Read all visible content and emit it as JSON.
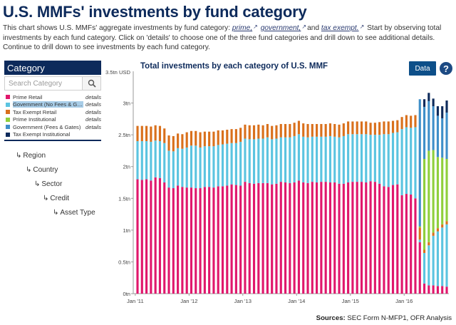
{
  "page": {
    "title": "U.S. MMFs' investments by fund category",
    "desc_part1": "This chart shows U.S. MMFs' aggregate investments by fund category: ",
    "link_prime": "prime,",
    "link_government": "government,",
    "desc_and": "and ",
    "link_tax_exempt": "tax exempt.",
    "desc_part2": " Start by observing total investments by each fund category. Click on 'details' to choose one of the three fund categories and drill down to see additional details. Continue to drill down to see investments by each fund category."
  },
  "sidebar": {
    "header": "Category",
    "search_placeholder": "Search Category",
    "details_label": "details",
    "categories": [
      {
        "label": "Prime Retail",
        "color": "#e0176c"
      },
      {
        "label": "Government (No Fees & Gates)",
        "color": "#5bc4e0"
      },
      {
        "label": "Tax Exempt Retail",
        "color": "#d9701c"
      },
      {
        "label": "Prime Institutional",
        "color": "#8fcf3c"
      },
      {
        "label": "Government (Fees & Gates)",
        "color": "#3f8fc9"
      },
      {
        "label": "Tax Exempt Institutional",
        "color": "#0d2a5b"
      }
    ],
    "drilldown": [
      "Region",
      "Country",
      "Sector",
      "Credit",
      "Asset Type"
    ]
  },
  "toolbar": {
    "data_label": "Data",
    "help_label": "?"
  },
  "sources": {
    "label": "Sources:",
    "text": "SEC Form N-MFP1, OFR Analysis"
  },
  "chart_data": {
    "type": "bar",
    "stacked": true,
    "title": "Total investments by each category of U.S. MMF",
    "yunit_label": "3.5tn USD",
    "ylim": [
      0,
      3.5
    ],
    "yticks": [
      "0tn",
      "0.5tn",
      "1tn",
      "1.5tn",
      "2tn",
      "2.5tn",
      "3tn"
    ],
    "ytick_values": [
      0,
      0.5,
      1,
      1.5,
      2,
      2.5,
      3
    ],
    "xticks": [
      "Jan '11",
      "Jan '12",
      "Jan '13",
      "Jan '14",
      "Jan '15",
      "Jan '16"
    ],
    "categories": [
      "2011-01",
      "2011-02",
      "2011-03",
      "2011-04",
      "2011-05",
      "2011-06",
      "2011-07",
      "2011-08",
      "2011-09",
      "2011-10",
      "2011-11",
      "2011-12",
      "2012-01",
      "2012-02",
      "2012-03",
      "2012-04",
      "2012-05",
      "2012-06",
      "2012-07",
      "2012-08",
      "2012-09",
      "2012-10",
      "2012-11",
      "2012-12",
      "2013-01",
      "2013-02",
      "2013-03",
      "2013-04",
      "2013-05",
      "2013-06",
      "2013-07",
      "2013-08",
      "2013-09",
      "2013-10",
      "2013-11",
      "2013-12",
      "2014-01",
      "2014-02",
      "2014-03",
      "2014-04",
      "2014-05",
      "2014-06",
      "2014-07",
      "2014-08",
      "2014-09",
      "2014-10",
      "2014-11",
      "2014-12",
      "2015-01",
      "2015-02",
      "2015-03",
      "2015-04",
      "2015-05",
      "2015-06",
      "2015-07",
      "2015-08",
      "2015-09",
      "2015-10",
      "2015-11",
      "2015-12",
      "2016-01",
      "2016-02",
      "2016-03",
      "2016-04",
      "2016-05",
      "2016-06",
      "2016-07",
      "2016-08",
      "2016-09",
      "2016-10"
    ],
    "series": [
      {
        "name": "Prime Retail",
        "values": [
          1.8,
          1.79,
          1.8,
          1.78,
          1.83,
          1.82,
          1.75,
          1.67,
          1.66,
          1.7,
          1.68,
          1.67,
          1.67,
          1.66,
          1.66,
          1.68,
          1.68,
          1.67,
          1.69,
          1.69,
          1.7,
          1.72,
          1.71,
          1.7,
          1.76,
          1.74,
          1.73,
          1.74,
          1.74,
          1.74,
          1.72,
          1.73,
          1.76,
          1.75,
          1.74,
          1.75,
          1.78,
          1.75,
          1.74,
          1.76,
          1.75,
          1.76,
          1.76,
          1.75,
          1.75,
          1.73,
          1.73,
          1.75,
          1.76,
          1.76,
          1.76,
          1.75,
          1.77,
          1.76,
          1.73,
          1.69,
          1.68,
          1.71,
          1.72,
          1.55,
          1.57,
          1.56,
          1.5,
          0.81,
          0.16,
          0.13,
          0.13,
          0.12,
          0.12,
          0.11
        ]
      },
      {
        "name": "Government (No Fees & Gates)",
        "values": [
          0.6,
          0.61,
          0.6,
          0.61,
          0.58,
          0.58,
          0.62,
          0.58,
          0.58,
          0.59,
          0.6,
          0.63,
          0.66,
          0.67,
          0.64,
          0.64,
          0.64,
          0.65,
          0.65,
          0.66,
          0.66,
          0.65,
          0.66,
          0.69,
          0.68,
          0.69,
          0.7,
          0.7,
          0.7,
          0.72,
          0.71,
          0.71,
          0.7,
          0.71,
          0.72,
          0.73,
          0.73,
          0.72,
          0.72,
          0.71,
          0.72,
          0.71,
          0.71,
          0.73,
          0.72,
          0.73,
          0.75,
          0.76,
          0.75,
          0.75,
          0.75,
          0.76,
          0.73,
          0.74,
          0.77,
          0.82,
          0.83,
          0.82,
          0.82,
          1.04,
          1.05,
          1.05,
          1.12,
          0.04,
          0.48,
          0.63,
          0.78,
          0.86,
          0.92,
          0.98
        ]
      },
      {
        "name": "Tax Exempt Retail",
        "values": [
          0.24,
          0.24,
          0.24,
          0.24,
          0.24,
          0.24,
          0.23,
          0.24,
          0.24,
          0.23,
          0.23,
          0.24,
          0.23,
          0.23,
          0.24,
          0.23,
          0.23,
          0.23,
          0.23,
          0.22,
          0.22,
          0.22,
          0.22,
          0.22,
          0.22,
          0.22,
          0.22,
          0.22,
          0.21,
          0.21,
          0.21,
          0.21,
          0.21,
          0.21,
          0.21,
          0.21,
          0.21,
          0.21,
          0.21,
          0.2,
          0.2,
          0.2,
          0.2,
          0.2,
          0.2,
          0.2,
          0.2,
          0.2,
          0.2,
          0.2,
          0.2,
          0.2,
          0.19,
          0.19,
          0.2,
          0.2,
          0.2,
          0.19,
          0.19,
          0.19,
          0.19,
          0.19,
          0.19,
          0.19,
          0.05,
          0.05,
          0.05,
          0.05,
          0.05,
          0.05
        ]
      },
      {
        "name": "Prime Institutional",
        "values": [
          0,
          0,
          0,
          0,
          0,
          0,
          0,
          0,
          0,
          0,
          0,
          0,
          0,
          0,
          0,
          0,
          0,
          0,
          0,
          0,
          0,
          0,
          0,
          0,
          0,
          0,
          0,
          0,
          0,
          0,
          0,
          0,
          0,
          0,
          0,
          0,
          0,
          0,
          0,
          0,
          0,
          0,
          0,
          0,
          0,
          0,
          0,
          0,
          0,
          0,
          0,
          0,
          0,
          0,
          0,
          0,
          0,
          0,
          0,
          0,
          0,
          0,
          0,
          0.02,
          1.43,
          1.44,
          1.3,
          1.12,
          1.05,
          0.98
        ]
      },
      {
        "name": "Government (Fees & Gates)",
        "values": [
          0,
          0,
          0,
          0,
          0,
          0,
          0,
          0,
          0,
          0,
          0,
          0,
          0,
          0,
          0,
          0,
          0,
          0,
          0,
          0,
          0,
          0,
          0,
          0,
          0,
          0,
          0,
          0,
          0,
          0,
          0,
          0,
          0,
          0,
          0,
          0,
          0,
          0,
          0,
          0,
          0,
          0,
          0,
          0,
          0,
          0,
          0,
          0,
          0,
          0,
          0,
          0,
          0,
          0,
          0,
          0,
          0,
          0,
          0,
          0,
          0,
          0,
          0,
          2.0,
          0.82,
          0.78,
          0.69,
          0.65,
          0.62,
          0.73
        ]
      },
      {
        "name": "Tax Exempt Institutional",
        "values": [
          0,
          0,
          0,
          0,
          0,
          0,
          0,
          0,
          0,
          0,
          0,
          0,
          0,
          0,
          0,
          0,
          0,
          0,
          0,
          0,
          0,
          0,
          0,
          0,
          0,
          0,
          0,
          0,
          0,
          0,
          0,
          0,
          0,
          0,
          0,
          0,
          0,
          0,
          0,
          0,
          0,
          0,
          0,
          0,
          0,
          0,
          0,
          0,
          0,
          0,
          0,
          0,
          0,
          0,
          0,
          0,
          0,
          0,
          0,
          0,
          0,
          0,
          0,
          0,
          0.12,
          0.13,
          0.12,
          0.15,
          0.19,
          0.19
        ]
      }
    ]
  }
}
